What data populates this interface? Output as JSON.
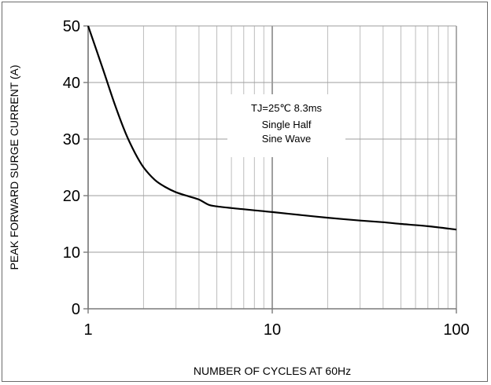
{
  "chart_data": {
    "type": "line",
    "xlabel": "NUMBER OF CYCLES AT 60Hz",
    "ylabel": "PEAK FORWARD SURGE CURRENT (A)",
    "x_scale": "log",
    "xlim": [
      1,
      100
    ],
    "ylim": [
      0,
      50
    ],
    "x_ticks": [
      1,
      10,
      100
    ],
    "x_tick_labels": [
      "1",
      "10",
      "100"
    ],
    "y_ticks": [
      0,
      10,
      20,
      30,
      40,
      50
    ],
    "y_tick_labels": [
      "0",
      "10",
      "20",
      "30",
      "40",
      "50"
    ],
    "grid": true,
    "annotation": [
      "TJ=25℃ 8.3ms",
      "Single Half",
      "Sine Wave"
    ],
    "series": [
      {
        "color": "#000000",
        "x": [
          1,
          1.2,
          1.4,
          1.6,
          1.8,
          2,
          2.3,
          2.6,
          3,
          3.5,
          4,
          4.5,
          5,
          6,
          7,
          8,
          10,
          15,
          20,
          30,
          40,
          50,
          70,
          100
        ],
        "y": [
          50,
          42.5,
          36,
          31,
          27.5,
          25,
          22.8,
          21.6,
          20.6,
          19.9,
          19.3,
          18.4,
          18.1,
          17.8,
          17.6,
          17.4,
          17.1,
          16.5,
          16.1,
          15.6,
          15.3,
          15,
          14.6,
          14
        ]
      }
    ]
  }
}
